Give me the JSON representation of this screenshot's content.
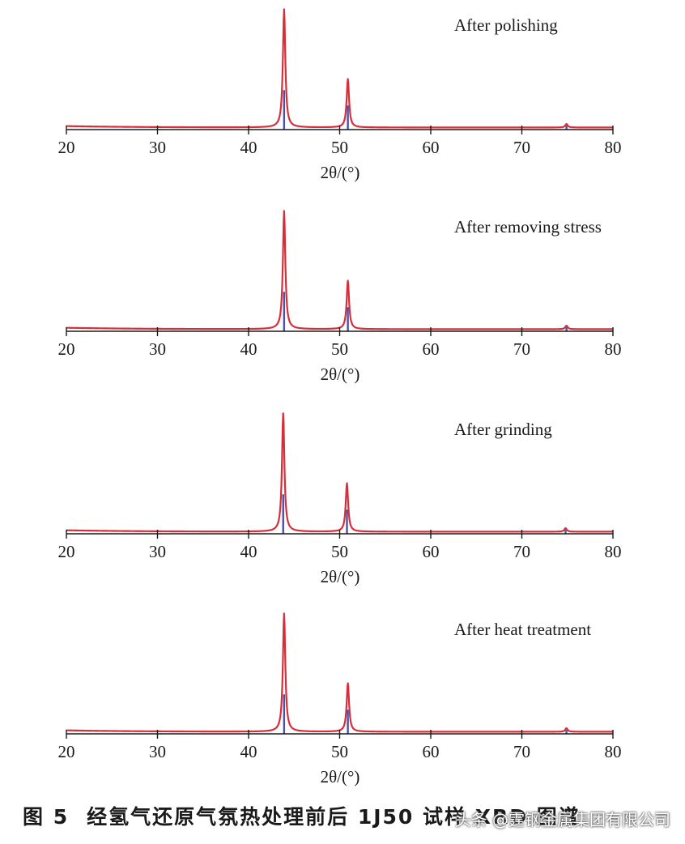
{
  "chart_data": {
    "type": "line",
    "subplots": [
      {
        "label": "After polishing",
        "peaks": [
          {
            "x": 43.9,
            "h": 1.0,
            "blue": 0.32
          },
          {
            "x": 50.9,
            "h": 0.41,
            "blue": 0.19
          },
          {
            "x": 74.9,
            "h": 0.03,
            "blue": 0.02
          }
        ]
      },
      {
        "label": "After removing stress",
        "peaks": [
          {
            "x": 43.9,
            "h": 1.0,
            "blue": 0.32
          },
          {
            "x": 50.9,
            "h": 0.41,
            "blue": 0.19
          },
          {
            "x": 74.9,
            "h": 0.03,
            "blue": 0.02
          }
        ]
      },
      {
        "label": "After  grinding",
        "peaks": [
          {
            "x": 43.8,
            "h": 1.0,
            "blue": 0.32
          },
          {
            "x": 50.8,
            "h": 0.41,
            "blue": 0.19
          },
          {
            "x": 74.8,
            "h": 0.03,
            "blue": 0.02
          }
        ]
      },
      {
        "label": "After heat treatment",
        "peaks": [
          {
            "x": 43.9,
            "h": 1.0,
            "blue": 0.32
          },
          {
            "x": 50.9,
            "h": 0.41,
            "blue": 0.19
          },
          {
            "x": 74.9,
            "h": 0.03,
            "blue": 0.02
          }
        ]
      }
    ],
    "xlim": [
      20,
      80
    ],
    "xticks": [
      20,
      30,
      40,
      50,
      60,
      70,
      80
    ],
    "xlabel": "2θ/(°)",
    "series_colors": {
      "pattern": "#d62f3a",
      "reference": "#4a4fa8"
    }
  },
  "caption": {
    "figure_number": "图 5",
    "text": "经氢气还原气氛热处理前后 1J50 试样 XRD 图谱"
  },
  "watermark": "头条 @霆钢金属集团有限公司"
}
